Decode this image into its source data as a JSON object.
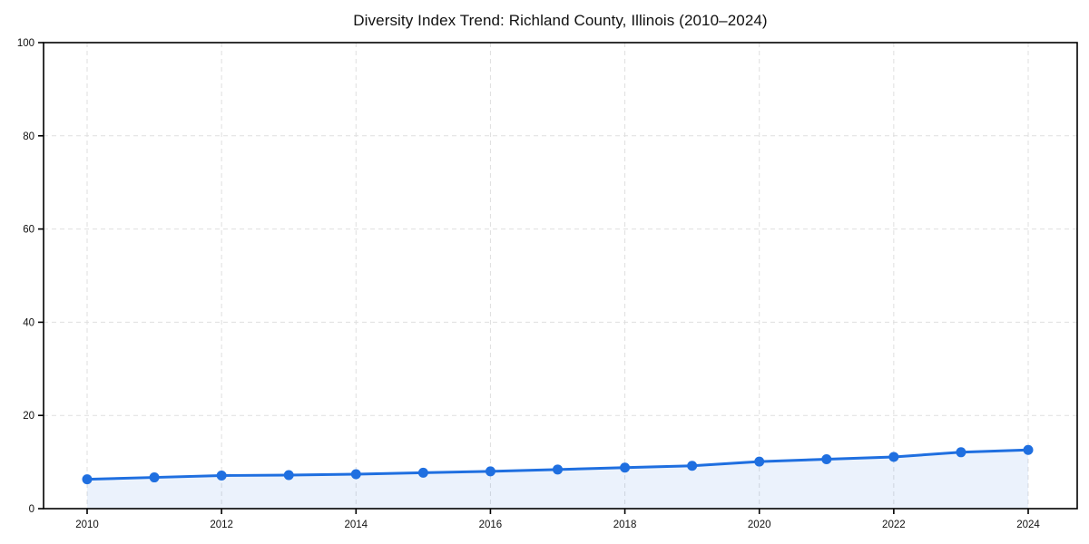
{
  "page": {
    "background_color": "#ffffff"
  },
  "chart_data": {
    "type": "line",
    "title": "Diversity Index Trend: Richland County, Illinois (2010–2024)",
    "x": [
      2010,
      2011,
      2012,
      2013,
      2014,
      2015,
      2016,
      2017,
      2018,
      2019,
      2020,
      2021,
      2022,
      2023,
      2024
    ],
    "values": [
      6.3,
      6.7,
      7.1,
      7.2,
      7.4,
      7.7,
      8.0,
      8.4,
      8.8,
      9.2,
      10.1,
      10.6,
      11.1,
      12.1,
      12.6
    ],
    "xlabel": "",
    "ylabel": "",
    "xlim": [
      2010,
      2024
    ],
    "ylim": [
      0,
      100
    ],
    "yticks": [
      0,
      20,
      40,
      60,
      80,
      100
    ],
    "xticks": [
      2010,
      2012,
      2014,
      2016,
      2018,
      2020,
      2022,
      2024
    ],
    "grid": true,
    "grid_style": "dashed",
    "legend_position": "none",
    "marker": "circle",
    "colors": {
      "line": "#1f6fe0",
      "marker": "#1f6fe0",
      "area_fill": "#1f6fe0",
      "area_fill_opacity": 0.09,
      "grid": "#dfdfdf",
      "axis": "#000000",
      "tick_label": "#111111",
      "title": "#111111"
    }
  }
}
